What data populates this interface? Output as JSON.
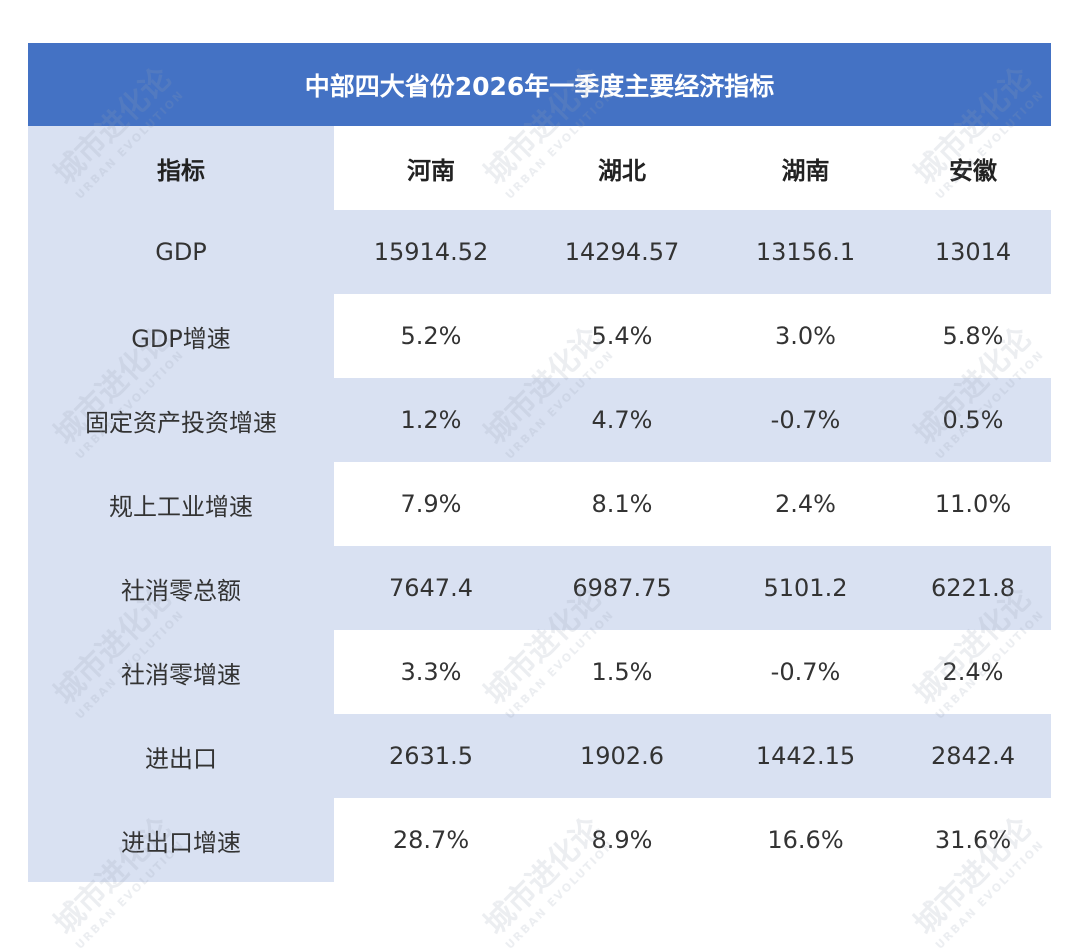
{
  "title": "中部四大省份2026年一季度主要经济指标",
  "watermark": {
    "cn": "城市进化论",
    "en": "URBAN EVOLUTION"
  },
  "colors": {
    "header_bg": "#4472C4",
    "stripe": "#D9E1F2",
    "white": "#FFFFFF"
  },
  "chart_data": {
    "type": "table",
    "title": "中部四大省份2026年一季度主要经济指标",
    "columns": [
      "指标",
      "河南",
      "湖北",
      "湖南",
      "安徽"
    ],
    "rows": [
      [
        "GDP",
        "15914.52",
        "14294.57",
        "13156.1",
        "13014"
      ],
      [
        "GDP增速",
        "5.2%",
        "5.4%",
        "3.0%",
        "5.8%"
      ],
      [
        "固定资产投资增速",
        "1.2%",
        "4.7%",
        "-0.7%",
        "0.5%"
      ],
      [
        "规上工业增速",
        "7.9%",
        "8.1%",
        "2.4%",
        "11.0%"
      ],
      [
        "社消零总额",
        "7647.4",
        "6987.75",
        "5101.2",
        "6221.8"
      ],
      [
        "社消零增速",
        "3.3%",
        "1.5%",
        "-0.7%",
        "2.4%"
      ],
      [
        "进出口",
        "2631.5",
        "1902.6",
        "1442.15",
        "2842.4"
      ],
      [
        "进出口增速",
        "28.7%",
        "8.9%",
        "16.6%",
        "31.6%"
      ]
    ]
  }
}
